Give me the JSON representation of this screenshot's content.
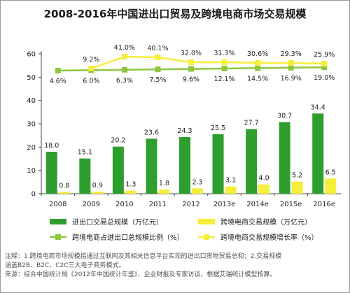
{
  "chart_data": {
    "type": "bar+line",
    "title": "2008-2016年中国进出口贸易及跨境电商市场交易规模",
    "categories": [
      "2008",
      "2009",
      "2010",
      "2011",
      "2012",
      "2013e",
      "2014e",
      "2015e",
      "2016e"
    ],
    "ylim": [
      0,
      60
    ],
    "yticks": [
      0,
      10,
      20,
      30,
      40,
      50,
      60
    ],
    "grid": false,
    "legend_position": "bottom",
    "bar_series": [
      {
        "name": "进出口交易总规模（万亿元）",
        "color": "#2e9e2e",
        "values": [
          18.0,
          15.1,
          20.2,
          23.6,
          24.3,
          25.5,
          27.7,
          30.7,
          34.4
        ],
        "labels": [
          "18.0",
          "15.1",
          "20.2",
          "23.6",
          "24.3",
          "25.5",
          "27.7",
          "30.7",
          "34.4"
        ]
      },
      {
        "name": "跨境电商交易规模（万亿元）",
        "color": "#f5ee3a",
        "values": [
          0.8,
          0.9,
          1.3,
          1.8,
          2.3,
          3.1,
          4.0,
          5.2,
          6.5
        ],
        "labels": [
          "0.8",
          "0.9",
          "1.3",
          "1.8",
          "2.3",
          "3.1",
          "4.0",
          "5.2",
          "6.5"
        ]
      }
    ],
    "line_series": [
      {
        "name": "跨境电商占进出口总规模比例（%）",
        "color": "#8dc63f",
        "labels": [
          "4.6%",
          "6.0%",
          "6.3%",
          "7.5%",
          "9.6%",
          "12.1%",
          "14.5%",
          "16.9%",
          "19.0%"
        ]
      },
      {
        "name": "跨境电商交易规模增长率（%）",
        "color": "#f5ee3a",
        "labels": [
          "",
          "9.2%",
          "41.0%",
          "40.1%",
          "32.0%",
          "31.3%",
          "30.6%",
          "29.3%",
          "25.9%"
        ]
      }
    ],
    "note_lines": [
      "注释：1.跨境电商市场规模指通过互联网及其相关信息平台实现的进出口货物贸易总和；2.交易规模",
      "涵盖B2B、B2C、C2C三大电子商务模式。",
      "来源：综合中国统计局《2012年中国统计年鉴》、企业财报及专家访谈，根据艾瑞统计模型核算。"
    ]
  }
}
